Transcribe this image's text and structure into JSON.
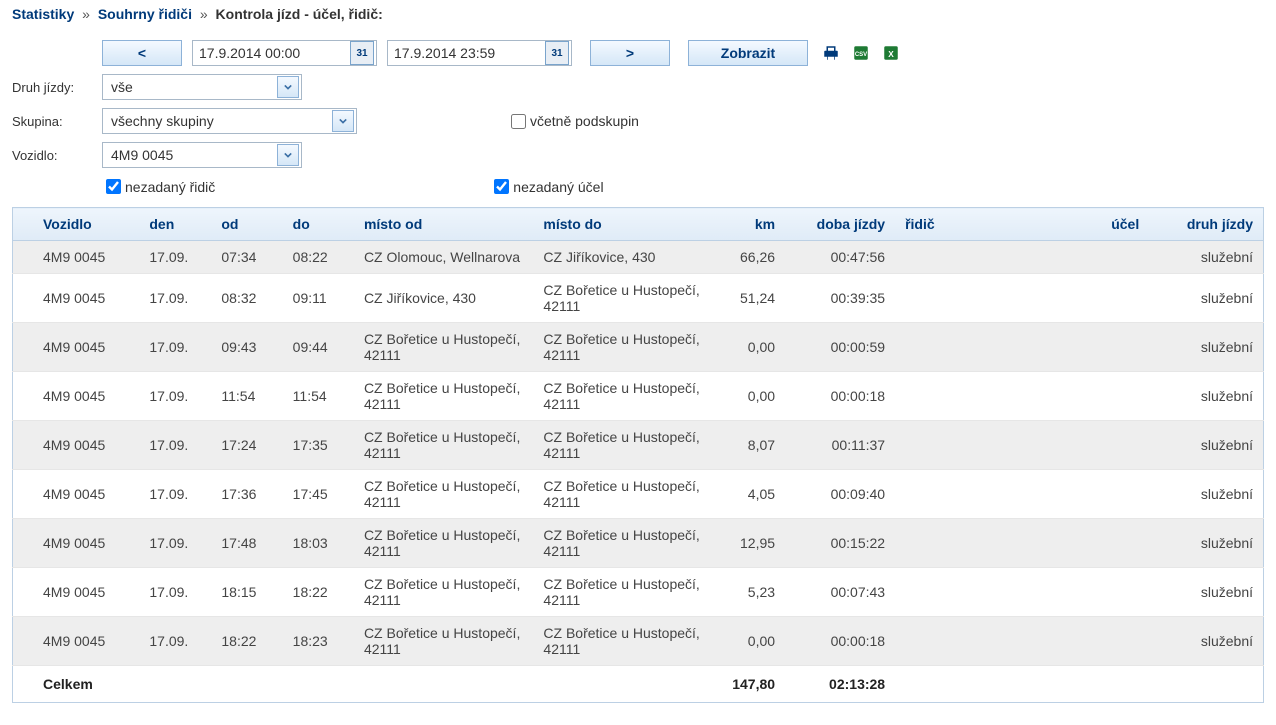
{
  "breadcrumb": {
    "l1": "Statistiky",
    "l2": "Souhrny řidiči",
    "l3": "Kontrola jízd - účel, řidič:"
  },
  "toolbar": {
    "prev": "<",
    "next": ">",
    "show": "Zobrazit",
    "date_from": "17.9.2014 00:00",
    "date_to": "17.9.2014 23:59",
    "cal_day": "31"
  },
  "filters": {
    "type_label": "Druh jízdy:",
    "type_value": "vše",
    "group_label": "Skupina:",
    "group_value": "všechny skupiny",
    "vehicle_label": "Vozidlo:",
    "vehicle_value": "4M9 0045",
    "incl_subgroups": "včetně podskupin",
    "no_driver": "nezadaný řidič",
    "no_purpose": "nezadaný účel"
  },
  "table": {
    "headers": {
      "vozidlo": "Vozidlo",
      "den": "den",
      "od": "od",
      "do": "do",
      "misto_od": "místo od",
      "misto_do": "místo do",
      "km": "km",
      "doba": "doba jízdy",
      "ridic": "řidič",
      "ucel": "účel",
      "druh": "druh jízdy"
    },
    "rows": [
      {
        "vozidlo": "4M9 0045",
        "den": "17.09.",
        "od": "07:34",
        "do": "08:22",
        "misto_od": "CZ Olomouc, Wellnarova",
        "misto_do": "CZ Jiříkovice, 430",
        "km": "66,26",
        "doba": "00:47:56",
        "ridic": "",
        "ucel": "",
        "druh": "služební"
      },
      {
        "vozidlo": "4M9 0045",
        "den": "17.09.",
        "od": "08:32",
        "do": "09:11",
        "misto_od": "CZ Jiříkovice, 430",
        "misto_do": "CZ Bořetice u Hustopečí, 42111",
        "km": "51,24",
        "doba": "00:39:35",
        "ridic": "",
        "ucel": "",
        "druh": "služební"
      },
      {
        "vozidlo": "4M9 0045",
        "den": "17.09.",
        "od": "09:43",
        "do": "09:44",
        "misto_od": "CZ Bořetice u Hustopečí, 42111",
        "misto_do": "CZ Bořetice u Hustopečí, 42111",
        "km": "0,00",
        "doba": "00:00:59",
        "ridic": "",
        "ucel": "",
        "druh": "služební"
      },
      {
        "vozidlo": "4M9 0045",
        "den": "17.09.",
        "od": "11:54",
        "do": "11:54",
        "misto_od": "CZ Bořetice u Hustopečí, 42111",
        "misto_do": "CZ Bořetice u Hustopečí, 42111",
        "km": "0,00",
        "doba": "00:00:18",
        "ridic": "",
        "ucel": "",
        "druh": "služební"
      },
      {
        "vozidlo": "4M9 0045",
        "den": "17.09.",
        "od": "17:24",
        "do": "17:35",
        "misto_od": "CZ Bořetice u Hustopečí, 42111",
        "misto_do": "CZ Bořetice u Hustopečí, 42111",
        "km": "8,07",
        "doba": "00:11:37",
        "ridic": "",
        "ucel": "",
        "druh": "služební"
      },
      {
        "vozidlo": "4M9 0045",
        "den": "17.09.",
        "od": "17:36",
        "do": "17:45",
        "misto_od": "CZ Bořetice u Hustopečí, 42111",
        "misto_do": "CZ Bořetice u Hustopečí, 42111",
        "km": "4,05",
        "doba": "00:09:40",
        "ridic": "",
        "ucel": "",
        "druh": "služební"
      },
      {
        "vozidlo": "4M9 0045",
        "den": "17.09.",
        "od": "17:48",
        "do": "18:03",
        "misto_od": "CZ Bořetice u Hustopečí, 42111",
        "misto_do": "CZ Bořetice u Hustopečí, 42111",
        "km": "12,95",
        "doba": "00:15:22",
        "ridic": "",
        "ucel": "",
        "druh": "služební"
      },
      {
        "vozidlo": "4M9 0045",
        "den": "17.09.",
        "od": "18:15",
        "do": "18:22",
        "misto_od": "CZ Bořetice u Hustopečí, 42111",
        "misto_do": "CZ Bořetice u Hustopečí, 42111",
        "km": "5,23",
        "doba": "00:07:43",
        "ridic": "",
        "ucel": "",
        "druh": "služební"
      },
      {
        "vozidlo": "4M9 0045",
        "den": "17.09.",
        "od": "18:22",
        "do": "18:23",
        "misto_od": "CZ Bořetice u Hustopečí, 42111",
        "misto_do": "CZ Bořetice u Hustopečí, 42111",
        "km": "0,00",
        "doba": "00:00:18",
        "ridic": "",
        "ucel": "",
        "druh": "služební"
      }
    ],
    "footer": {
      "label": "Celkem",
      "km": "147,80",
      "doba": "02:13:28"
    }
  },
  "style": {
    "accent": "#003a7a",
    "header_grad_top": "#eef5fc",
    "header_grad_bot": "#dfebf7",
    "row_odd": "#eeeeee",
    "row_even": "#ffffff",
    "border": "#bcd0e4"
  }
}
